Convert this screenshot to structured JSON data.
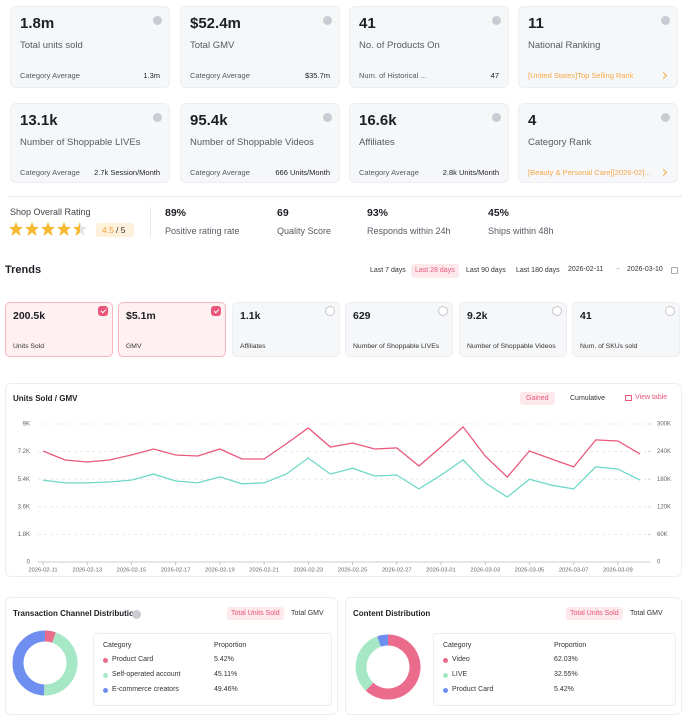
{
  "stat_cards": [
    {
      "value": "1.8m",
      "label": "Total units sold",
      "footer_label": "Category Average",
      "footer_value": "1.3m"
    },
    {
      "value": "$52.4m",
      "label": "Total GMV",
      "footer_label": "Category Average",
      "footer_value": "$35.7m"
    },
    {
      "value": "41",
      "label": "No. of Products On",
      "footer_label": "Num. of Historical ...",
      "footer_value": "47"
    },
    {
      "value": "11",
      "label": "National Ranking",
      "link": "[United States]Top Selling Rank"
    },
    {
      "value": "13.1k",
      "label": "Number of Shoppable LIVEs",
      "footer_label": "Category Average",
      "footer_value": "2.7k Session/Month"
    },
    {
      "value": "95.4k",
      "label": "Number of Shoppable Videos",
      "footer_label": "Category Average",
      "footer_value": "666 Units/Month"
    },
    {
      "value": "16.6k",
      "label": "Affiliates",
      "footer_label": "Category Average",
      "footer_value": "2.8k Units/Month"
    },
    {
      "value": "4",
      "label": "Category Rank",
      "link": "[Beauty & Personal Care][2026-02]..."
    }
  ],
  "rating": {
    "title": "Shop Overall Rating",
    "score": "4.5",
    "out_of": "/ 5",
    "metrics": [
      {
        "value": "89%",
        "label": "Positive rating rate"
      },
      {
        "value": "69",
        "label": "Quality Score"
      },
      {
        "value": "93%",
        "label": "Responds within 24h"
      },
      {
        "value": "45%",
        "label": "Ships within 48h"
      }
    ]
  },
  "trends": {
    "title": "Trends",
    "ranges": [
      "Last 7 days",
      "Last 28 days",
      "Last 90 days",
      "Last 180 days"
    ],
    "active_range": 1,
    "date_from": "2026-02-11",
    "separator": "~",
    "date_to": "2026-03-10"
  },
  "metric_tiles": [
    {
      "value": "200.5k",
      "label": "Units Sold",
      "selected": true
    },
    {
      "value": "$5.1m",
      "label": "GMV",
      "selected": true
    },
    {
      "value": "1.1k",
      "label": "Affiliates",
      "selected": false
    },
    {
      "value": "629",
      "label": "Number of Shoppable LIVEs",
      "selected": false
    },
    {
      "value": "9.2k",
      "label": "Number of Shoppable Videos",
      "selected": false
    },
    {
      "value": "41",
      "label": "Num. of SKUs sold",
      "selected": false
    }
  ],
  "chart_data": [
    {
      "type": "line",
      "title": "Units Sold / GMV",
      "toggles": [
        "Gained",
        "Cumulative"
      ],
      "active_toggle": 0,
      "view_table": "View table",
      "categories": [
        "2026-02-11",
        null,
        "2026-02-13",
        null,
        "2026-02-15",
        null,
        "2026-02-17",
        null,
        "2026-02-19",
        null,
        "2026-02-21",
        null,
        "2026-02-23",
        null,
        "2026-02-25",
        null,
        "2026-02-27",
        null,
        "2026-03-01",
        null,
        "2026-03-03",
        null,
        "2026-03-05",
        null,
        "2026-03-07",
        null,
        "2026-03-09",
        null
      ],
      "series": [
        {
          "color": "#e9577a",
          "values": [
            7240,
            6650,
            6520,
            6650,
            6980,
            7370,
            6980,
            6910,
            7370,
            6720,
            6720,
            7700,
            8740,
            7500,
            7760,
            7370,
            7440,
            6260,
            7500,
            8810,
            6910,
            5540,
            7240,
            6720,
            6200,
            7960,
            7890,
            7050
          ]
        },
        {
          "color": "#6fd8c8",
          "axis": "y2",
          "values": [
            178000,
            172000,
            172000,
            174000,
            178000,
            191000,
            176000,
            172000,
            185000,
            170000,
            172000,
            191000,
            226000,
            191000,
            204000,
            187000,
            189000,
            159000,
            189000,
            222000,
            172000,
            141000,
            180000,
            167000,
            159000,
            207000,
            202000,
            178000
          ]
        }
      ],
      "ylim": [
        0,
        9000
      ],
      "yticks": [
        0,
        {
          "value": 1800,
          "label": "1.8K"
        },
        {
          "value": 3600,
          "label": "3.6K"
        },
        {
          "value": 5400,
          "label": "5.4K"
        },
        {
          "value": 7200,
          "label": "7.2K"
        },
        {
          "value": 9000,
          "label": "9K"
        }
      ],
      "y2lim": [
        0,
        300000
      ],
      "y2ticks": [
        0,
        {
          "value": 60000,
          "label": "60K"
        },
        {
          "value": 120000,
          "label": "120K"
        },
        {
          "value": 180000,
          "label": "180K"
        },
        {
          "value": 240000,
          "label": "240K"
        },
        {
          "value": 300000,
          "label": "300K"
        }
      ],
      "grid": true
    },
    {
      "type": "pie",
      "title": "Transaction Channel Distribution",
      "toggles": [
        "Total Units Sold",
        "Total GMV"
      ],
      "active_toggle": 0,
      "columns": [
        "Category",
        "Proportion"
      ],
      "categories": [
        "Product Card",
        "Self-operated account",
        "E-commerce creators"
      ],
      "values": [
        5.42,
        45.11,
        49.46
      ],
      "value_labels": [
        "5.42%",
        "45.11%",
        "49.46%"
      ],
      "colors": [
        "#ea6b8c",
        "#a6e8c6",
        "#6f8ff0"
      ]
    },
    {
      "type": "pie",
      "title": "Content Distribution",
      "toggles": [
        "Total Units Sold",
        "Total GMV"
      ],
      "active_toggle": 0,
      "columns": [
        "Category",
        "Proportion"
      ],
      "categories": [
        "Video",
        "LIVE",
        "Product Card"
      ],
      "values": [
        62.03,
        32.55,
        5.42
      ],
      "value_labels": [
        "62.03%",
        "32.55%",
        "5.42%"
      ],
      "colors": [
        "#ea6b8c",
        "#a6e8c6",
        "#6f8ff0"
      ]
    }
  ]
}
